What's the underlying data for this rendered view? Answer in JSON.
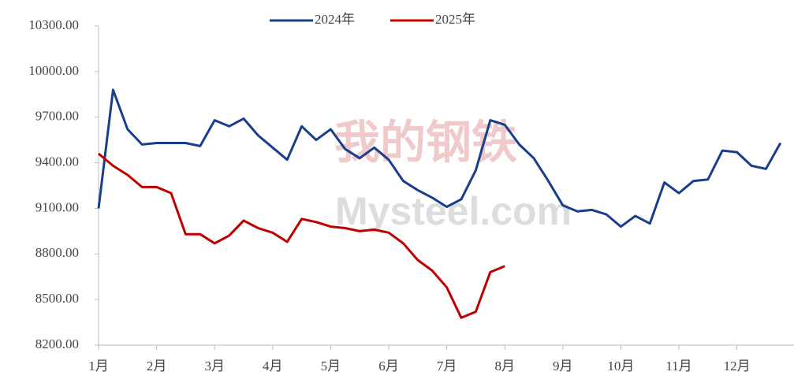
{
  "chart_data": {
    "type": "line",
    "watermark": {
      "cn": "我的钢铁",
      "en": "Mysteel.com"
    },
    "categories": [
      "1月",
      null,
      null,
      null,
      "2月",
      null,
      null,
      null,
      "3月",
      null,
      null,
      null,
      "4月",
      null,
      null,
      null,
      "5月",
      null,
      null,
      null,
      "6月",
      null,
      null,
      null,
      "7月",
      null,
      null,
      null,
      "8月",
      null,
      null,
      null,
      "9月",
      null,
      null,
      null,
      "10月",
      null,
      null,
      null,
      "11月",
      null,
      null,
      null,
      "12月",
      null,
      null,
      null
    ],
    "series": [
      {
        "name": "2024年",
        "color": "#1a3e8c",
        "values": [
          9100,
          9880,
          9620,
          9520,
          9530,
          9530,
          9530,
          9510,
          9680,
          9640,
          9690,
          9580,
          9500,
          9420,
          9640,
          9550,
          9620,
          9490,
          9430,
          9500,
          9420,
          9280,
          9220,
          9170,
          9110,
          9160,
          9350,
          9680,
          9650,
          9520,
          9430,
          9280,
          9120,
          9080,
          9090,
          9060,
          8980,
          9050,
          9000,
          9270,
          9200,
          9280,
          9290,
          9480,
          9470,
          9380,
          9360,
          9530
        ]
      },
      {
        "name": "2025年",
        "color": "#c00000",
        "values": [
          9460,
          9380,
          9320,
          9240,
          9240,
          9200,
          8930,
          8930,
          8870,
          8920,
          9020,
          8970,
          8940,
          8880,
          9030,
          9010,
          8980,
          8970,
          8950,
          8960,
          8940,
          8870,
          8760,
          8690,
          8580,
          8380,
          8420,
          8680,
          8720,
          null,
          null,
          null,
          null,
          null,
          null,
          null,
          null,
          null,
          null,
          null,
          null,
          null,
          null,
          null,
          null,
          null,
          null,
          null
        ]
      }
    ],
    "ylim": [
      8200,
      10300
    ],
    "yticks": [
      {
        "value": 8200,
        "label": "8200.00"
      },
      {
        "value": 8500,
        "label": "8500.00"
      },
      {
        "value": 8800,
        "label": "8800.00"
      },
      {
        "value": 9100,
        "label": "9100.00"
      },
      {
        "value": 9400,
        "label": "9400.00"
      },
      {
        "value": 9700,
        "label": "9700.00"
      },
      {
        "value": 10000,
        "label": "10000.00"
      },
      {
        "value": 10300,
        "label": "10300.00"
      }
    ],
    "legend": "top"
  }
}
